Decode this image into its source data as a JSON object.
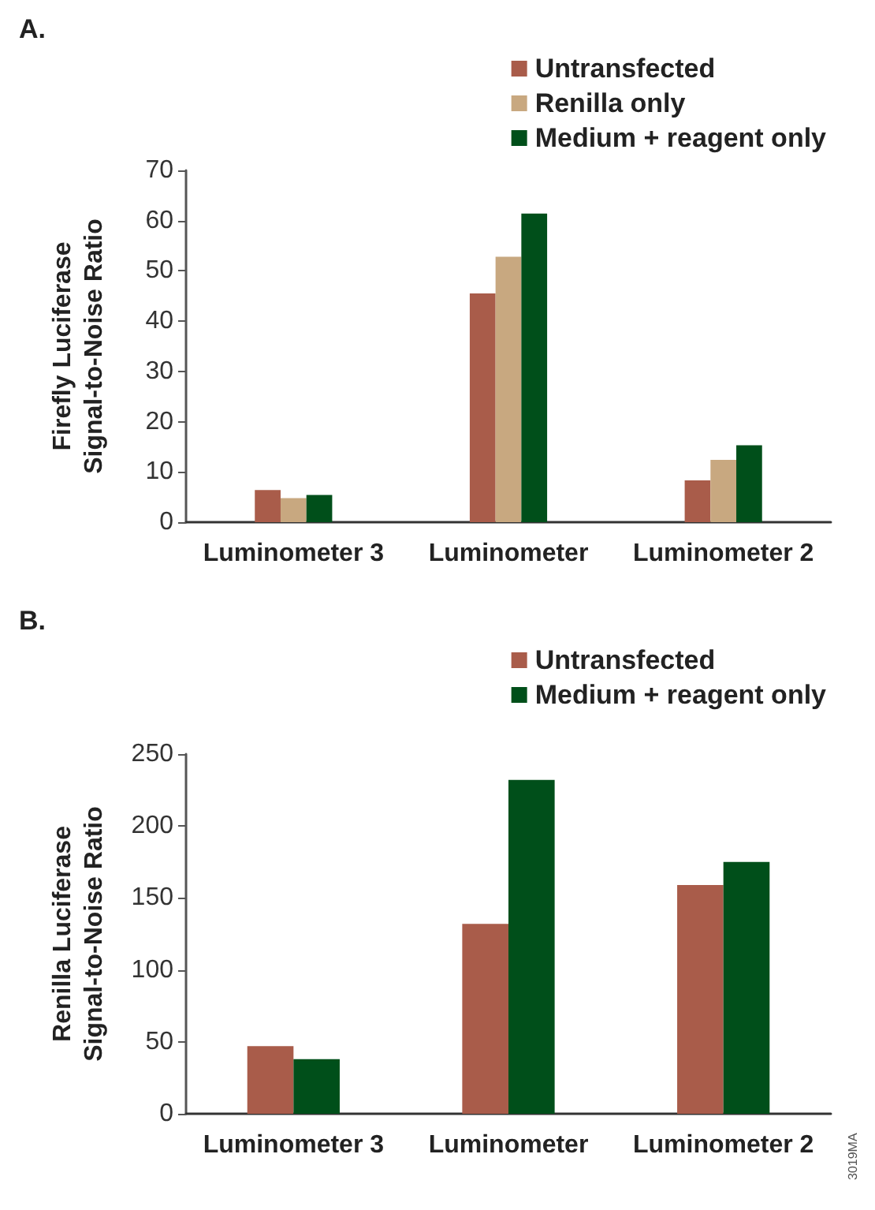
{
  "chart_data": [
    {
      "type": "bar",
      "title": "A.",
      "ylabel": "Firefly Luciferase\nSignal-to-Noise Ratio",
      "categories": [
        "Luminometer 3",
        "Luminometer",
        "Luminometer 2"
      ],
      "series": [
        {
          "name": "Untransfected",
          "color": "#a95c4a",
          "values": [
            6.4,
            45.5,
            8.3
          ]
        },
        {
          "name": "Renilla only",
          "color": "#c8a880",
          "values": [
            4.8,
            52.8,
            12.4
          ]
        },
        {
          "name": "Medium + reagent only",
          "color": "#004f1a",
          "values": [
            5.4,
            61.4,
            15.3
          ]
        }
      ],
      "ylim": [
        0,
        70
      ],
      "yticks": [
        0,
        10,
        20,
        30,
        40,
        50,
        60,
        70
      ],
      "grid": false,
      "legend": "top right"
    },
    {
      "type": "bar",
      "title": "B.",
      "ylabel": "Renilla Luciferase\nSignal-to-Noise Ratio",
      "categories": [
        "Luminometer 3",
        "Luminometer",
        "Luminometer 2"
      ],
      "series": [
        {
          "name": "Untransfected",
          "color": "#a95c4a",
          "values": [
            47,
            132,
            159
          ]
        },
        {
          "name": "Medium + reagent only",
          "color": "#004f1a",
          "values": [
            38,
            232,
            175
          ]
        }
      ],
      "ylim": [
        0,
        250
      ],
      "yticks": [
        0,
        50,
        100,
        150,
        200,
        250
      ],
      "grid": false,
      "legend": "top right",
      "annotations": [
        "3019MA"
      ]
    }
  ]
}
